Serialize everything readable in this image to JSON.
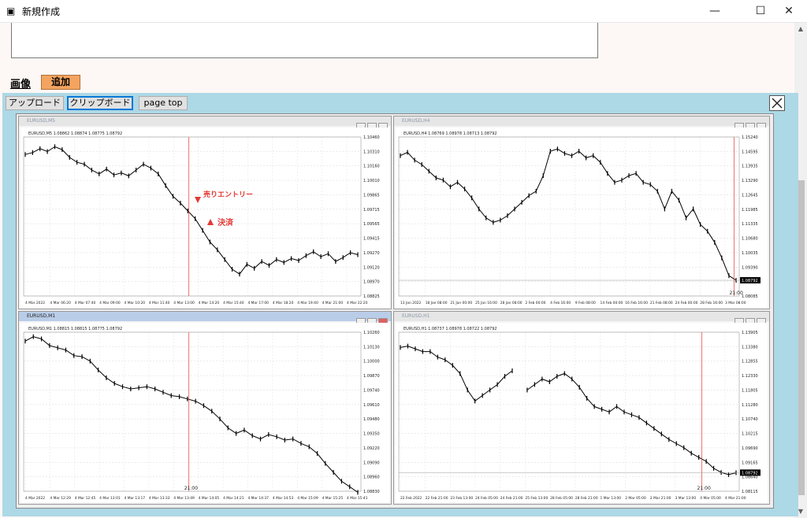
{
  "window": {
    "title": "新規作成",
    "minimize": "—",
    "maximize": "☐",
    "close": "✕"
  },
  "form": {
    "image_label": "画像",
    "add_button": "追加"
  },
  "toolbar": {
    "upload": "アップロード",
    "clipboard": "クリップボード",
    "page_top": "page top"
  },
  "chart_data": [
    {
      "type": "line",
      "title": "EURUSD,M5",
      "ohlc_header": "EURUSD,M5  1.08862 1.08874 1.08775 1.08792",
      "x_ticks": [
        "4 Mar 2022",
        "4 Mar 06:20",
        "4 Mar 07:40",
        "4 Mar 09:00",
        "4 Mar 10:20",
        "4 Mar 11:40",
        "4 Mar 13:00",
        "4 Mar 14:20",
        "4 Mar 15:40",
        "4 Mar 17:00",
        "4 Mar 18:20",
        "4 Mar 19:40",
        "4 Mar 21:00",
        "4 Mar 22:20"
      ],
      "y_ticks": [
        "1.10460",
        "1.10310",
        "1.10160",
        "1.10010",
        "1.09865",
        "1.09715",
        "1.09565",
        "1.09415",
        "1.09270",
        "1.09120",
        "1.08970",
        "1.08825"
      ],
      "annotations": [
        "売りエントリー",
        "決済"
      ],
      "y": [
        1.1028,
        1.103,
        1.1034,
        1.1031,
        1.1036,
        1.1033,
        1.1025,
        1.102,
        1.1018,
        1.1012,
        1.1008,
        1.1013,
        1.1007,
        1.1009,
        1.1006,
        1.1012,
        1.1018,
        1.1014,
        1.1008,
        1.0996,
        1.0985,
        1.0978,
        1.097,
        1.0962,
        1.095,
        1.0938,
        1.093,
        1.092,
        1.091,
        1.0905,
        1.0915,
        1.0911,
        1.0918,
        1.0914,
        1.092,
        1.0917,
        1.0921,
        1.0919,
        1.0924,
        1.0928,
        1.0923,
        1.0926,
        1.0918,
        1.0922,
        1.0927,
        1.0925
      ]
    },
    {
      "type": "line",
      "title": "EURUSD,H4",
      "ohlc_header": "EURUSD,H4  1.08769 1.08978 1.08713 1.08792",
      "x_ticks": [
        "13 Jan 2022",
        "18 Jan 08:00",
        "21 Jan 00:00",
        "25 Jan 16:00",
        "28 Jan 08:00",
        "2 Feb 00:00",
        "4 Feb 16:00",
        "9 Feb 08:00",
        "14 Feb 00:00",
        "16 Feb 16:00",
        "21 Feb 08:00",
        "24 Feb 00:00",
        "28 Feb 16:00",
        "3 Mar 08:00"
      ],
      "y_ticks": [
        "1.15240",
        "1.14595",
        "1.13935",
        "1.13290",
        "1.12645",
        "1.11985",
        "1.11335",
        "1.10680",
        "1.10035",
        "1.09390",
        "1.08792",
        "1.08085"
      ],
      "last_price": "1.08792",
      "y": [
        1.144,
        1.1455,
        1.142,
        1.14,
        1.137,
        1.134,
        1.133,
        1.13,
        1.132,
        1.129,
        1.125,
        1.12,
        1.116,
        1.114,
        1.115,
        1.117,
        1.12,
        1.123,
        1.126,
        1.128,
        1.135,
        1.146,
        1.147,
        1.145,
        1.144,
        1.146,
        1.143,
        1.144,
        1.141,
        1.136,
        1.132,
        1.133,
        1.135,
        1.136,
        1.132,
        1.131,
        1.128,
        1.12,
        1.128,
        1.124,
        1.116,
        1.12,
        1.113,
        1.11,
        1.105,
        1.098,
        1.09,
        1.0879
      ]
    },
    {
      "type": "line",
      "title": "EURUSD,M1",
      "ohlc_header": "EURUSD,M1  1.08815 1.08815 1.08775 1.08792",
      "x_ticks": [
        "4 Mar 2022",
        "4 Mar 12:29",
        "4 Mar 12:45",
        "4 Mar 13:01",
        "4 Mar 13:17",
        "4 Mar 13:33",
        "4 Mar 13:49",
        "4 Mar 14:05",
        "4 Mar 14:21",
        "4 Mar 14:37",
        "4 Mar 14:53",
        "4 Mar 15:09",
        "4 Mar 15:25",
        "4 Mar 15:41"
      ],
      "y_ticks": [
        "1.10260",
        "1.10130",
        "1.10000",
        "1.09870",
        "1.09740",
        "1.09610",
        "1.09480",
        "1.09350",
        "1.09220",
        "1.09090",
        "1.08960",
        "1.08830"
      ],
      "y": [
        1.1018,
        1.1022,
        1.102,
        1.1014,
        1.1012,
        1.101,
        1.1005,
        1.1004,
        1.1,
        1.0992,
        1.0985,
        1.098,
        1.0977,
        1.0975,
        1.0976,
        1.0977,
        1.0975,
        1.0972,
        1.0969,
        1.0968,
        1.0966,
        1.0964,
        1.096,
        1.0955,
        1.0948,
        1.094,
        1.0935,
        1.0938,
        1.0933,
        1.093,
        1.0934,
        1.0932,
        1.0929,
        1.093,
        1.0926,
        1.0923,
        1.0917,
        1.0908,
        1.09,
        1.0892,
        1.0887,
        1.0882
      ]
    },
    {
      "type": "line",
      "title": "EURUSD,H1",
      "ohlc_header": "EURUSD,H1  1.08737 1.08978 1.08722 1.08792",
      "x_ticks": [
        "22 Feb 2022",
        "22 Feb 21:00",
        "23 Feb 13:00",
        "24 Feb 05:00",
        "24 Feb 21:00",
        "25 Feb 13:00",
        "28 Feb 05:00",
        "28 Feb 21:00",
        "1 Mar 13:00",
        "2 Mar 05:00",
        "2 Mar 21:00",
        "3 Mar 13:00",
        "4 Mar 05:00",
        "4 Mar 21:00"
      ],
      "y_ticks": [
        "1.13905",
        "1.13380",
        "1.12855",
        "1.12330",
        "1.11805",
        "1.11280",
        "1.10740",
        "1.10215",
        "1.09690",
        "1.09165",
        "1.08640",
        "1.08115"
      ],
      "last_price": "1.08792",
      "y": [
        1.1335,
        1.134,
        1.133,
        1.132,
        1.132,
        1.13,
        1.129,
        1.127,
        1.124,
        1.118,
        1.114,
        1.116,
        1.118,
        1.12,
        1.123,
        1.125,
        null,
        1.118,
        1.12,
        1.122,
        1.121,
        1.123,
        1.124,
        1.122,
        1.119,
        1.115,
        1.112,
        1.111,
        1.11,
        1.112,
        1.11,
        1.109,
        1.108,
        1.106,
        1.104,
        1.102,
        1.1,
        1.0985,
        1.097,
        1.095,
        1.0935,
        1.092,
        1.0895,
        1.088,
        1.0872,
        1.0879
      ]
    }
  ],
  "time_marker": "21:00"
}
